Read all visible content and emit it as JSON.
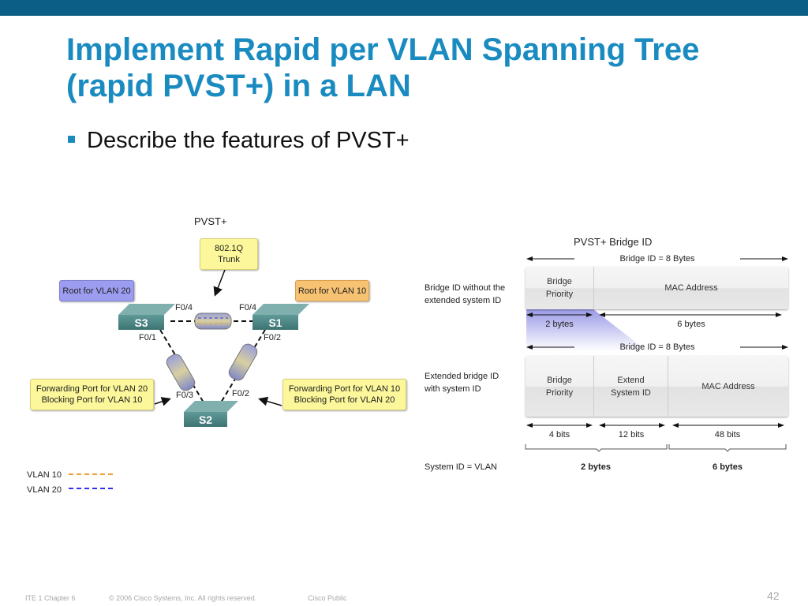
{
  "slide": {
    "title": "Implement Rapid per VLAN Spanning Tree (rapid PVST+) in a LAN",
    "bullet": "Describe the features of PVST+",
    "colors": {
      "top_bar": "#0b5e86",
      "title": "#1a8bc0",
      "vlan10": "#f0a030",
      "vlan20": "#3030f0"
    }
  },
  "topology": {
    "title": "PVST+",
    "trunk_label": [
      "802.1Q",
      "Trunk"
    ],
    "root_vlan20": "Root for VLAN 20",
    "root_vlan10": "Root for VLAN 10",
    "switches": {
      "s1": "S1",
      "s2": "S2",
      "s3": "S3"
    },
    "ports": {
      "s3_f04": "F0/4",
      "s1_f04": "F0/4",
      "s3_f01": "F0/1",
      "s1_f02": "F0/2",
      "s2_f03": "F0/3",
      "s2_f02": "F0/2"
    },
    "left_callout": [
      "Forwarding Port for VLAN 20",
      "Blocking Port for VLAN 10"
    ],
    "right_callout": [
      "Forwarding Port for VLAN 10",
      "Blocking Port for VLAN 20"
    ],
    "legend": [
      {
        "label": "VLAN 10"
      },
      {
        "label": "VLAN 20"
      }
    ]
  },
  "bridge_id": {
    "title": "PVST+ Bridge ID",
    "total_label": "Bridge ID = 8 Bytes",
    "row1_label": [
      "Bridge ID without the",
      "extended system ID"
    ],
    "row1_fields": {
      "priority": [
        "Bridge",
        "Priority"
      ],
      "mac": "MAC Address"
    },
    "row1_sizes": [
      "2 bytes",
      "6 bytes"
    ],
    "row2_label": [
      "Extended bridge ID",
      "with system ID"
    ],
    "row2_fields": {
      "priority": [
        "Bridge",
        "Priority"
      ],
      "ext": [
        "Extend",
        "System ID"
      ],
      "mac": "MAC Address"
    },
    "row2_bits": [
      "4 bits",
      "12 bits",
      "48 bits"
    ],
    "system_id_label": "System ID = VLAN",
    "row2_bytes": [
      "2 bytes",
      "6 bytes"
    ]
  },
  "footer": {
    "course": "ITE 1 Chapter 6",
    "copyright": "© 2006 Cisco Systems, Inc. All rights reserved.",
    "classification": "Cisco Public",
    "page": "42"
  }
}
